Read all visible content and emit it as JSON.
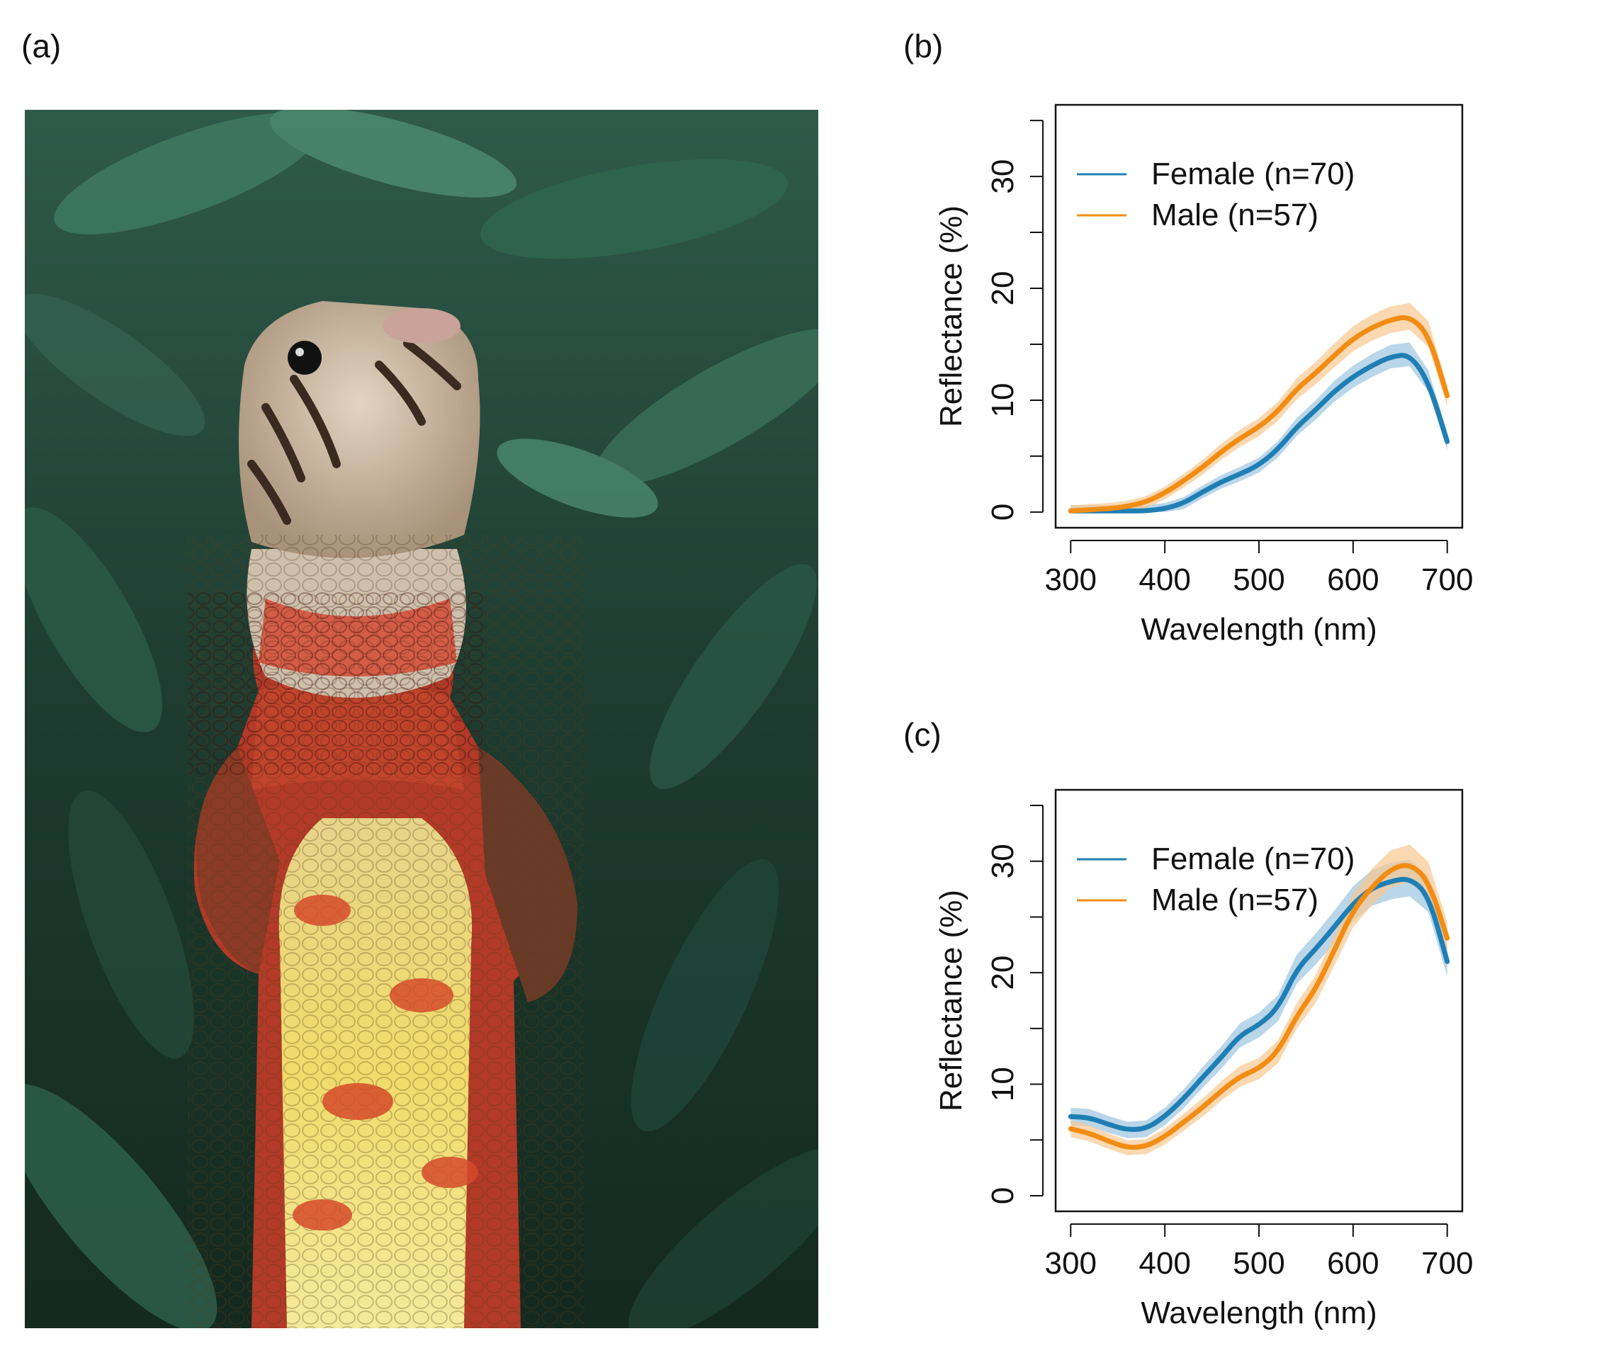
{
  "labels": {
    "a": "(a)",
    "b": "(b)",
    "c": "(c)"
  },
  "photo": {
    "subject": "lizard-throat-photo"
  },
  "colors": {
    "female": "#1f7fb4",
    "male": "#f28c13",
    "female_band": "#9cc4df",
    "male_band": "#f8c890"
  },
  "chart_data": [
    {
      "type": "line",
      "panel": "(b)",
      "xlabel": "Wavelength (nm)",
      "ylabel": "Reflectance (%)",
      "xlim": [
        300,
        700
      ],
      "ylim": [
        0,
        35
      ],
      "xticks": [
        300,
        400,
        500,
        600,
        700
      ],
      "yticks": [
        0,
        10,
        20,
        30
      ],
      "legend_position": "top-left",
      "x": [
        300,
        320,
        340,
        360,
        380,
        400,
        420,
        440,
        460,
        480,
        500,
        520,
        540,
        560,
        580,
        600,
        620,
        640,
        660,
        680,
        700
      ],
      "series": [
        {
          "name": "Female (n=70)",
          "values": [
            0.1,
            0.1,
            0.1,
            0.1,
            0.1,
            0.3,
            0.8,
            1.8,
            2.7,
            3.4,
            4.2,
            5.6,
            7.6,
            9.1,
            10.8,
            12.1,
            13.1,
            13.9,
            14.1,
            11.7,
            6.3
          ]
        },
        {
          "name": "Male (n=57)",
          "values": [
            0.1,
            0.2,
            0.3,
            0.5,
            0.9,
            1.7,
            2.8,
            4.0,
            5.4,
            6.6,
            7.6,
            9.0,
            11.0,
            12.4,
            14.0,
            15.5,
            16.5,
            17.2,
            17.5,
            15.9,
            10.4
          ]
        }
      ]
    },
    {
      "type": "line",
      "panel": "(c)",
      "xlabel": "Wavelength (nm)",
      "ylabel": "Reflectance (%)",
      "xlim": [
        300,
        700
      ],
      "ylim": [
        0,
        35
      ],
      "xticks": [
        300,
        400,
        500,
        600,
        700
      ],
      "yticks": [
        0,
        10,
        20,
        30
      ],
      "legend_position": "top-left",
      "x": [
        300,
        320,
        340,
        360,
        380,
        400,
        420,
        440,
        460,
        480,
        500,
        520,
        540,
        560,
        580,
        600,
        620,
        640,
        660,
        680,
        700
      ],
      "series": [
        {
          "name": "Female (n=70)",
          "values": [
            7.1,
            7.0,
            6.4,
            5.9,
            6.0,
            7.1,
            8.7,
            10.6,
            12.4,
            14.4,
            15.3,
            16.8,
            20.3,
            22.1,
            24.1,
            26.2,
            27.6,
            28.2,
            28.5,
            27.0,
            21.0
          ]
        },
        {
          "name": "Male (n=57)",
          "values": [
            6.0,
            5.6,
            4.9,
            4.3,
            4.4,
            5.3,
            6.6,
            7.9,
            9.4,
            10.7,
            11.4,
            12.9,
            16.1,
            18.5,
            22.0,
            25.6,
            27.7,
            29.3,
            29.8,
            28.3,
            23.1
          ]
        }
      ]
    }
  ]
}
